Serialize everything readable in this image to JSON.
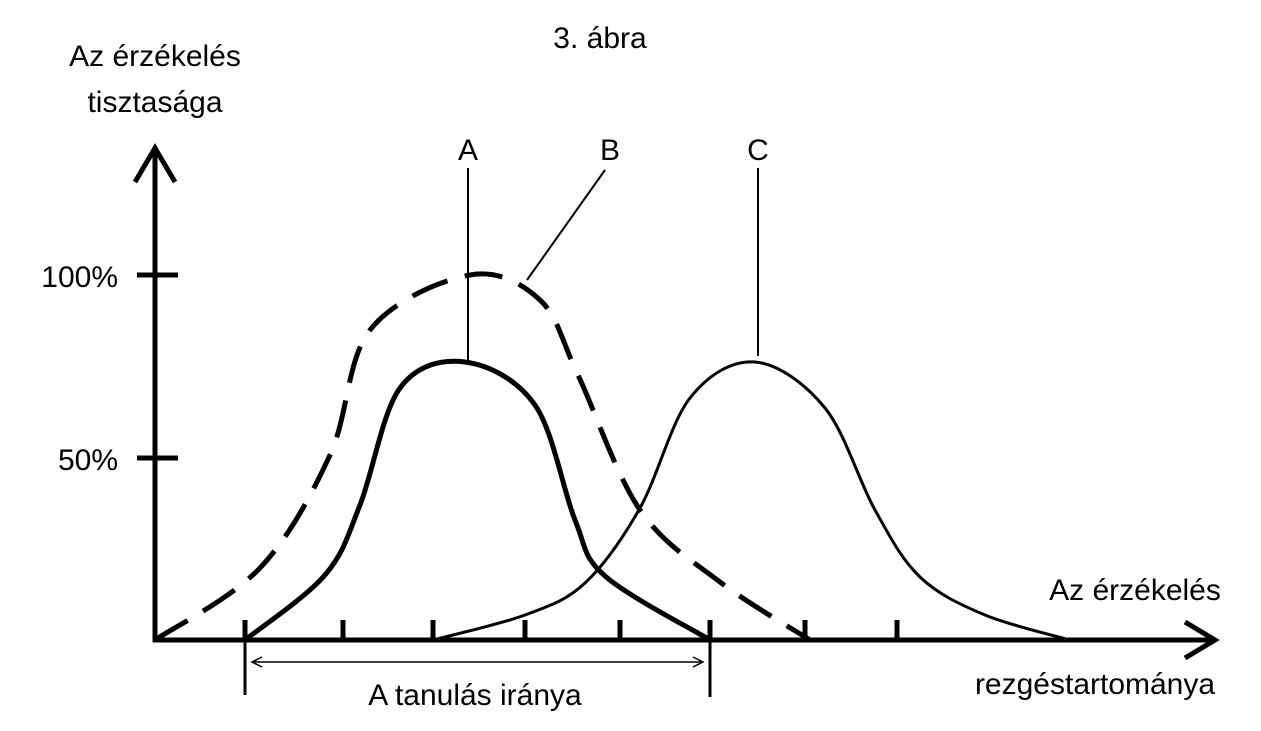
{
  "figure_title": "3.  ábra",
  "y_axis": {
    "label_lines": [
      "Az  érzékelés",
      "tisztasága"
    ],
    "ticks": [
      "100%",
      "50%"
    ]
  },
  "x_axis": {
    "label_lines": [
      "Az  érzékelés",
      "rezgéstartománya"
    ]
  },
  "curves": [
    {
      "label": "A"
    },
    {
      "label": "B"
    },
    {
      "label": "C"
    }
  ],
  "bracket_label": "A  tanulás  iránya"
}
